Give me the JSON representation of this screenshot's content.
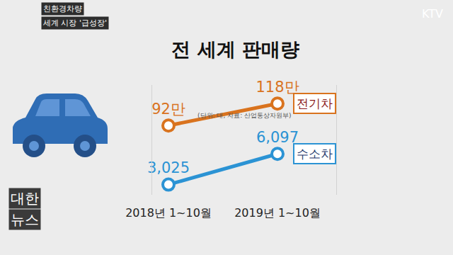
{
  "chart_data": {
    "type": "line",
    "title": "전 세계 판매량",
    "subtitle": "(단위: 대, 자료: 산업통상자원부)",
    "annotations": [
      "친환경차량",
      "세계 시장 '급성장'",
      "KTV",
      "대한",
      "뉴스"
    ],
    "categories": [
      "2018년 1~10월",
      "2019년 1~10월"
    ],
    "series": [
      {
        "name": "전기차",
        "color": "#d9731e",
        "values": [
          920000,
          1180000
        ],
        "value_labels": [
          "92만",
          "118만"
        ]
      },
      {
        "name": "수소차",
        "color": "#2b93d4",
        "values": [
          3025,
          6097
        ],
        "value_labels": [
          "3,025",
          "6,097"
        ],
        "axis": "y2"
      }
    ],
    "ylim": [
      100000,
      1400000
    ],
    "yticks": [],
    "y2lim": [
      2000,
      13000
    ],
    "y2ticks": [],
    "tick_labels": "x",
    "data_labels": true,
    "grid": false,
    "marker": "circle"
  }
}
